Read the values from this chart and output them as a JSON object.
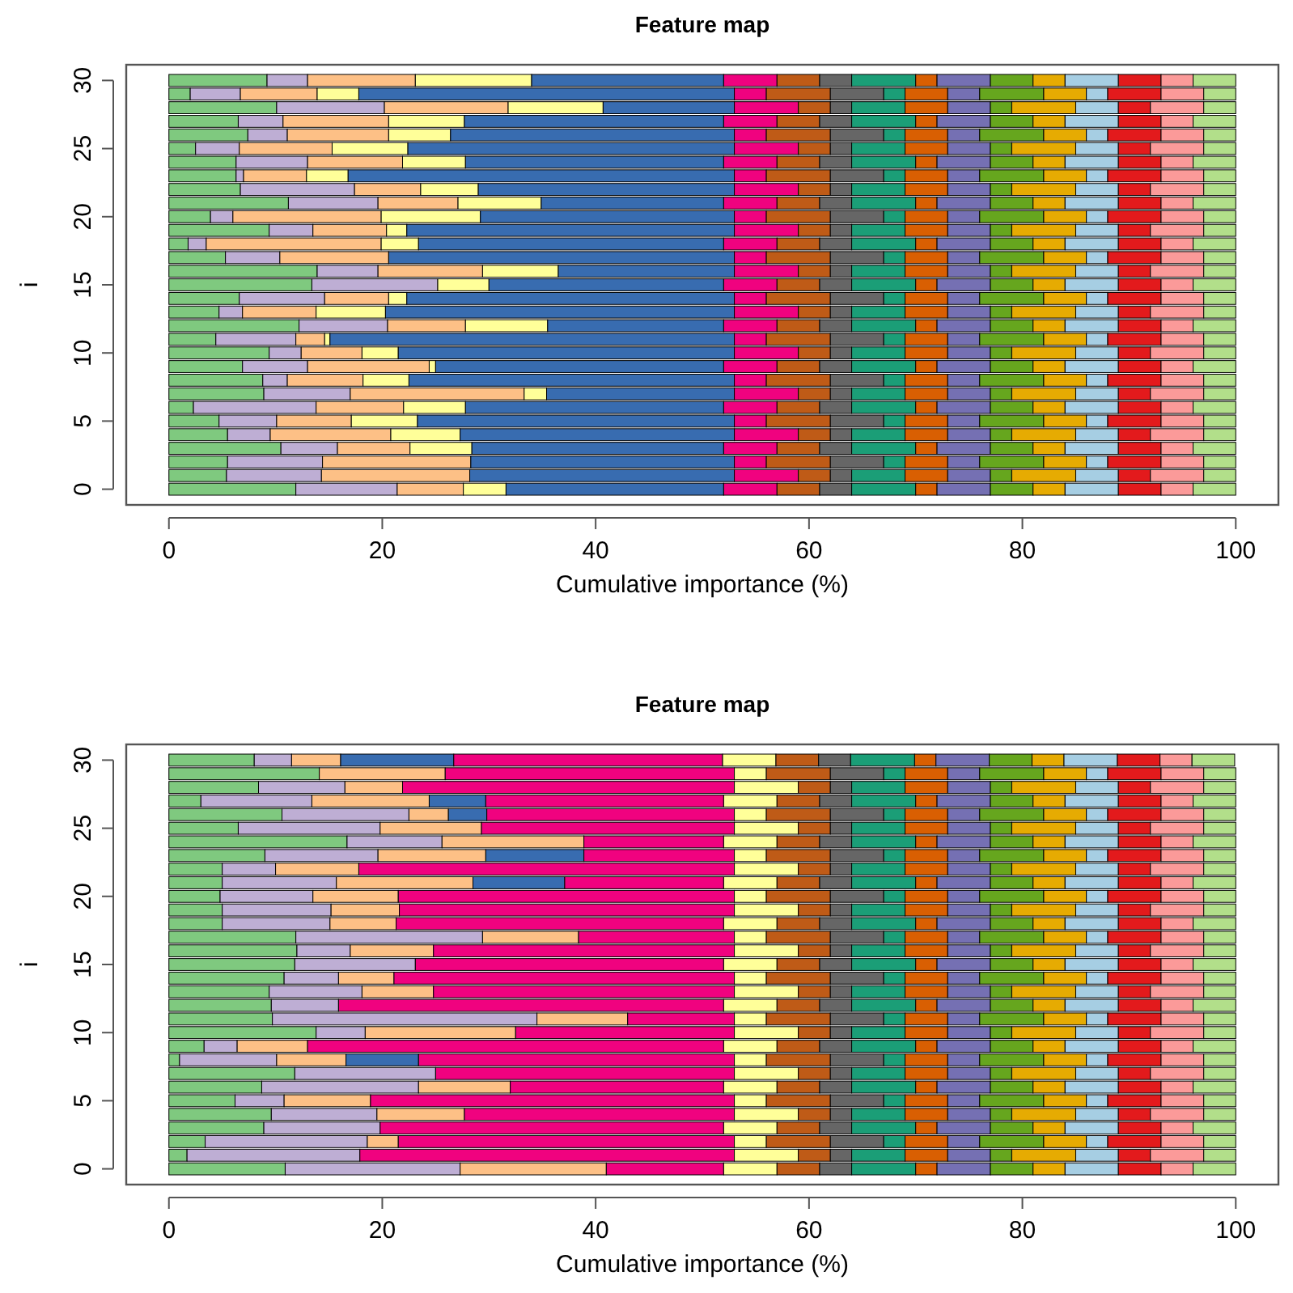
{
  "chart_data": [
    {
      "type": "bar",
      "title": "Feature map",
      "xlabel": "Cumulative importance (%)",
      "ylabel": "i",
      "orientation": "horizontal",
      "stacked": true,
      "xlim": [
        -4,
        104
      ],
      "xticks": [
        0,
        20,
        40,
        60,
        80,
        100
      ],
      "categories": [
        "30",
        null,
        null,
        null,
        null,
        "25",
        null,
        null,
        null,
        null,
        "20",
        null,
        null,
        null,
        null,
        "15",
        null,
        null,
        null,
        null,
        "10",
        null,
        null,
        null,
        null,
        "5",
        null,
        null,
        null,
        null,
        "0"
      ],
      "series": [
        {
          "color": "#7fc97f",
          "values": [
            9.2,
            2,
            10.1,
            6.5,
            7.4,
            2.5,
            6.3,
            6.3,
            6.7,
            11.2,
            3.9,
            9.4,
            1.8,
            5.3,
            13.9,
            13.4,
            6.6,
            4.7,
            12.2,
            4.4,
            9.4,
            6.9,
            8.8,
            8.9,
            2.3,
            4.7,
            5.5,
            10.5,
            5.5,
            5.4,
            11.9
          ]
        },
        {
          "color": "#beaed4",
          "values": [
            3.8,
            4.7,
            10.1,
            4.2,
            3.7,
            4.1,
            6.7,
            0.7,
            10.7,
            8.4,
            2.1,
            4.1,
            1.7,
            5.1,
            5.7,
            11.8,
            8,
            2.2,
            8.3,
            7.5,
            3,
            6.1,
            2.3,
            8.1,
            11.5,
            5.4,
            4,
            5.3,
            8.9,
            8.9,
            9.5
          ]
        },
        {
          "color": "#fdc086",
          "values": [
            10.1,
            7.2,
            11.6,
            9.9,
            9.5,
            8.7,
            8.9,
            5.9,
            6.2,
            7.5,
            13.9,
            6.9,
            16.4,
            10.2,
            9.8,
            0,
            6,
            6.9,
            7.3,
            2.7,
            5.7,
            11.4,
            7.1,
            16.3,
            8.2,
            7,
            11.3,
            6.8,
            13.9,
            13.9,
            6.2
          ]
        },
        {
          "color": "#ffff99",
          "values": [
            10.9,
            3.9,
            8.9,
            7.1,
            5.8,
            7.1,
            5.9,
            3.9,
            5.4,
            7.8,
            9.3,
            1.9,
            3.5,
            0,
            7.1,
            4.8,
            1.7,
            6.5,
            7.7,
            0.5,
            3.4,
            0.6,
            4.3,
            2.1,
            5.8,
            6.2,
            6.5,
            5.8,
            0,
            0,
            4
          ]
        },
        {
          "color": "#386cb0",
          "values": [
            18,
            35.2,
            12.3,
            24.3,
            26.6,
            30.6,
            24.2,
            36.2,
            24,
            17.1,
            23.8,
            30.7,
            28.6,
            32.4,
            16.5,
            22,
            30.7,
            32.7,
            16.5,
            37.9,
            31.5,
            27,
            30.5,
            17.6,
            24.2,
            29.7,
            25.7,
            23.6,
            24.7,
            24.8,
            20.4
          ]
        },
        {
          "color": "#f0027f",
          "values": [
            5,
            3,
            6,
            5,
            3,
            6,
            5,
            3,
            6,
            5,
            3,
            6,
            5,
            3,
            6,
            5,
            3,
            6,
            5,
            3,
            6,
            5,
            3,
            6,
            5,
            3,
            6,
            5,
            3,
            6,
            5
          ]
        },
        {
          "color": "#bf5b17",
          "values": [
            4,
            6,
            3,
            4,
            6,
            3,
            4,
            6,
            3,
            4,
            6,
            3,
            4,
            6,
            3,
            4,
            6,
            3,
            4,
            6,
            3,
            4,
            6,
            3,
            4,
            6,
            3,
            4,
            6,
            3,
            4
          ]
        },
        {
          "color": "#666666",
          "values": [
            3,
            5,
            2,
            3,
            5,
            2,
            3,
            5,
            2,
            3,
            5,
            2,
            3,
            5,
            2,
            3,
            5,
            2,
            3,
            5,
            2,
            3,
            5,
            2,
            3,
            5,
            2,
            3,
            5,
            2,
            3
          ]
        },
        {
          "color": "#1b9e77",
          "values": [
            6,
            2,
            5,
            6,
            2,
            5,
            6,
            2,
            5,
            6,
            2,
            5,
            6,
            2,
            5,
            6,
            2,
            5,
            6,
            2,
            5,
            6,
            2,
            5,
            6,
            2,
            5,
            6,
            2,
            5,
            6
          ]
        },
        {
          "color": "#d95f02",
          "values": [
            2,
            4,
            4,
            2,
            4,
            4,
            2,
            4,
            4,
            2,
            4,
            4,
            2,
            4,
            4,
            2,
            4,
            4,
            2,
            4,
            4,
            2,
            4,
            4,
            2,
            4,
            4,
            2,
            4,
            4,
            2
          ]
        },
        {
          "color": "#7570b3",
          "values": [
            5,
            3,
            4,
            5,
            3,
            4,
            5,
            3,
            4,
            5,
            3,
            4,
            5,
            3,
            4,
            5,
            3,
            4,
            5,
            3,
            4,
            5,
            3,
            4,
            5,
            3,
            4,
            5,
            3,
            4,
            5
          ]
        },
        {
          "color": "#66a61e",
          "values": [
            4,
            6,
            2,
            4,
            6,
            2,
            4,
            6,
            2,
            4,
            6,
            2,
            4,
            6,
            2,
            4,
            6,
            2,
            4,
            6,
            2,
            4,
            6,
            2,
            4,
            6,
            2,
            4,
            6,
            2,
            4
          ]
        },
        {
          "color": "#e6ab02",
          "values": [
            3,
            4,
            6,
            3,
            4,
            6,
            3,
            4,
            6,
            3,
            4,
            6,
            3,
            4,
            6,
            3,
            4,
            6,
            3,
            4,
            6,
            3,
            4,
            6,
            3,
            4,
            6,
            3,
            4,
            6,
            3
          ]
        },
        {
          "color": "#a6cee3",
          "values": [
            5,
            2,
            4,
            5,
            2,
            4,
            5,
            2,
            4,
            5,
            2,
            4,
            5,
            2,
            4,
            5,
            2,
            4,
            5,
            2,
            4,
            5,
            2,
            4,
            5,
            2,
            4,
            5,
            2,
            4,
            5
          ]
        },
        {
          "color": "#e31a1c",
          "values": [
            4,
            5,
            3,
            4,
            5,
            3,
            4,
            5,
            3,
            4,
            5,
            3,
            4,
            5,
            3,
            4,
            5,
            3,
            4,
            5,
            3,
            4,
            5,
            3,
            4,
            5,
            3,
            4,
            5,
            3,
            4
          ]
        },
        {
          "color": "#fb9a99",
          "values": [
            3,
            4,
            5,
            3,
            4,
            5,
            3,
            4,
            5,
            3,
            4,
            5,
            3,
            4,
            5,
            3,
            4,
            5,
            3,
            4,
            5,
            3,
            4,
            5,
            3,
            4,
            5,
            3,
            4,
            5,
            3
          ]
        },
        {
          "color": "#b2df8a",
          "values": [
            4,
            3,
            3,
            4,
            3,
            3,
            4,
            3,
            3,
            4,
            3,
            3,
            4,
            3,
            3,
            4,
            3,
            3,
            4,
            3,
            3,
            4,
            3,
            3,
            4,
            3,
            3,
            4,
            3,
            3,
            4
          ]
        }
      ]
    },
    {
      "type": "bar",
      "title": "Feature map",
      "xlabel": "Cumulative importance (%)",
      "ylabel": "i",
      "orientation": "horizontal",
      "stacked": true,
      "xlim": [
        -4,
        104
      ],
      "xticks": [
        0,
        20,
        40,
        60,
        80,
        100
      ],
      "categories": [
        "30",
        null,
        null,
        null,
        null,
        "25",
        null,
        null,
        null,
        null,
        "20",
        null,
        null,
        null,
        null,
        "15",
        null,
        null,
        null,
        null,
        "10",
        null,
        null,
        null,
        null,
        "5",
        null,
        null,
        null,
        null,
        "0"
      ],
      "series": [
        {
          "color": "#7fc97f",
          "values": [
            8,
            14.1,
            8.4,
            3,
            10.6,
            6.5,
            16.7,
            9,
            5,
            5,
            4.8,
            5,
            5,
            11.9,
            12,
            11.8,
            10.8,
            9.4,
            9.6,
            9.7,
            13.8,
            3.3,
            1,
            11.8,
            8.7,
            6.2,
            9.6,
            8.9,
            3.4,
            1.7,
            10.9
          ]
        },
        {
          "color": "#beaed4",
          "values": [
            3.5,
            0,
            8.1,
            10.4,
            11.9,
            13.3,
            8.9,
            10.6,
            5,
            10.7,
            8.7,
            10.2,
            10.1,
            17.5,
            5,
            11.3,
            5.1,
            8.7,
            6.3,
            24.8,
            4.6,
            3.1,
            9.1,
            13.2,
            14.7,
            4.6,
            9.9,
            10.9,
            15.2,
            16.2,
            16.4
          ]
        },
        {
          "color": "#fdc086",
          "values": [
            4.6,
            11.8,
            5.4,
            11,
            3.7,
            9.5,
            13.3,
            10.1,
            7.8,
            12.8,
            8,
            6.4,
            6.2,
            9,
            7.8,
            0,
            5.2,
            6.7,
            0,
            8.5,
            14.1,
            6.6,
            6.5,
            0,
            8.6,
            8.1,
            8.2,
            0,
            2.9,
            0,
            13.7
          ]
        },
        {
          "color": "#386cb0",
          "values": [
            10.6,
            0,
            0,
            5.3,
            3.6,
            0,
            0,
            9.2,
            0,
            8.6,
            0,
            0,
            0,
            0,
            0,
            0,
            0,
            0,
            0,
            0,
            0,
            0,
            6.8,
            0,
            0,
            0,
            0,
            0,
            0,
            0,
            0
          ]
        },
        {
          "color": "#f0027f",
          "values": [
            25.2,
            27.1,
            31.1,
            22.3,
            23.2,
            23.7,
            13.1,
            14.1,
            35.2,
            14.9,
            31.5,
            31.4,
            30.7,
            14.6,
            28.2,
            28.9,
            31.9,
            28.2,
            36.1,
            10,
            20.5,
            39,
            29.6,
            28,
            20,
            34.1,
            25.3,
            32.2,
            31.5,
            35.1,
            11
          ]
        },
        {
          "color": "#ffff99",
          "values": [
            5,
            3,
            6,
            5,
            3,
            6,
            5,
            3,
            6,
            5,
            3,
            6,
            5,
            3,
            6,
            5,
            3,
            6,
            5,
            3,
            6,
            5,
            3,
            6,
            5,
            3,
            6,
            5,
            3,
            6,
            5
          ]
        },
        {
          "color": "#bf5b17",
          "values": [
            4,
            6,
            3,
            4,
            6,
            3,
            4,
            6,
            3,
            4,
            6,
            3,
            4,
            6,
            3,
            4,
            6,
            3,
            4,
            6,
            3,
            4,
            6,
            3,
            4,
            6,
            3,
            4,
            6,
            3,
            4
          ]
        },
        {
          "color": "#666666",
          "values": [
            3,
            5,
            2,
            3,
            5,
            2,
            3,
            5,
            2,
            3,
            5,
            2,
            3,
            5,
            2,
            3,
            5,
            2,
            3,
            5,
            2,
            3,
            5,
            2,
            3,
            5,
            2,
            3,
            5,
            2,
            3
          ]
        },
        {
          "color": "#1b9e77",
          "values": [
            6,
            2,
            5,
            6,
            2,
            5,
            6,
            2,
            5,
            6,
            2,
            5,
            6,
            2,
            5,
            6,
            2,
            5,
            6,
            2,
            5,
            6,
            2,
            5,
            6,
            2,
            5,
            6,
            2,
            5,
            6
          ]
        },
        {
          "color": "#d95f02",
          "values": [
            2,
            4,
            4,
            2,
            4,
            4,
            2,
            4,
            4,
            2,
            4,
            4,
            2,
            4,
            4,
            2,
            4,
            4,
            2,
            4,
            4,
            2,
            4,
            4,
            2,
            4,
            4,
            2,
            4,
            4,
            2
          ]
        },
        {
          "color": "#7570b3",
          "values": [
            5,
            3,
            4,
            5,
            3,
            4,
            5,
            3,
            4,
            5,
            3,
            4,
            5,
            3,
            4,
            5,
            3,
            4,
            5,
            3,
            4,
            5,
            3,
            4,
            5,
            3,
            4,
            5,
            3,
            4,
            5
          ]
        },
        {
          "color": "#66a61e",
          "values": [
            4,
            6,
            2,
            4,
            6,
            2,
            4,
            6,
            2,
            4,
            6,
            2,
            4,
            6,
            2,
            4,
            6,
            2,
            4,
            6,
            2,
            4,
            6,
            2,
            4,
            6,
            2,
            4,
            6,
            2,
            4
          ]
        },
        {
          "color": "#e6ab02",
          "values": [
            3,
            4,
            6,
            3,
            4,
            6,
            3,
            4,
            6,
            3,
            4,
            6,
            3,
            4,
            6,
            3,
            4,
            6,
            3,
            4,
            6,
            3,
            4,
            6,
            3,
            4,
            6,
            3,
            4,
            6,
            3
          ]
        },
        {
          "color": "#a6cee3",
          "values": [
            5,
            2,
            4,
            5,
            2,
            4,
            5,
            2,
            4,
            5,
            2,
            4,
            5,
            2,
            4,
            5,
            2,
            4,
            5,
            2,
            4,
            5,
            2,
            4,
            5,
            2,
            4,
            5,
            2,
            4,
            5
          ]
        },
        {
          "color": "#e31a1c",
          "values": [
            4,
            5,
            3,
            4,
            5,
            3,
            4,
            5,
            3,
            4,
            5,
            3,
            4,
            5,
            3,
            4,
            5,
            3,
            4,
            5,
            3,
            4,
            5,
            3,
            4,
            5,
            3,
            4,
            5,
            3,
            4
          ]
        },
        {
          "color": "#fb9a99",
          "values": [
            3,
            4,
            5,
            3,
            4,
            5,
            3,
            4,
            5,
            3,
            4,
            5,
            3,
            4,
            5,
            3,
            4,
            5,
            3,
            4,
            5,
            3,
            4,
            5,
            3,
            4,
            5,
            3,
            4,
            5,
            3
          ]
        },
        {
          "color": "#b2df8a",
          "values": [
            4,
            3,
            3,
            4,
            3,
            3,
            4,
            3,
            3,
            4,
            3,
            3,
            4,
            3,
            3,
            4,
            3,
            3,
            4,
            3,
            3,
            4,
            3,
            3,
            4,
            3,
            3,
            4,
            3,
            3,
            4
          ]
        }
      ]
    }
  ]
}
